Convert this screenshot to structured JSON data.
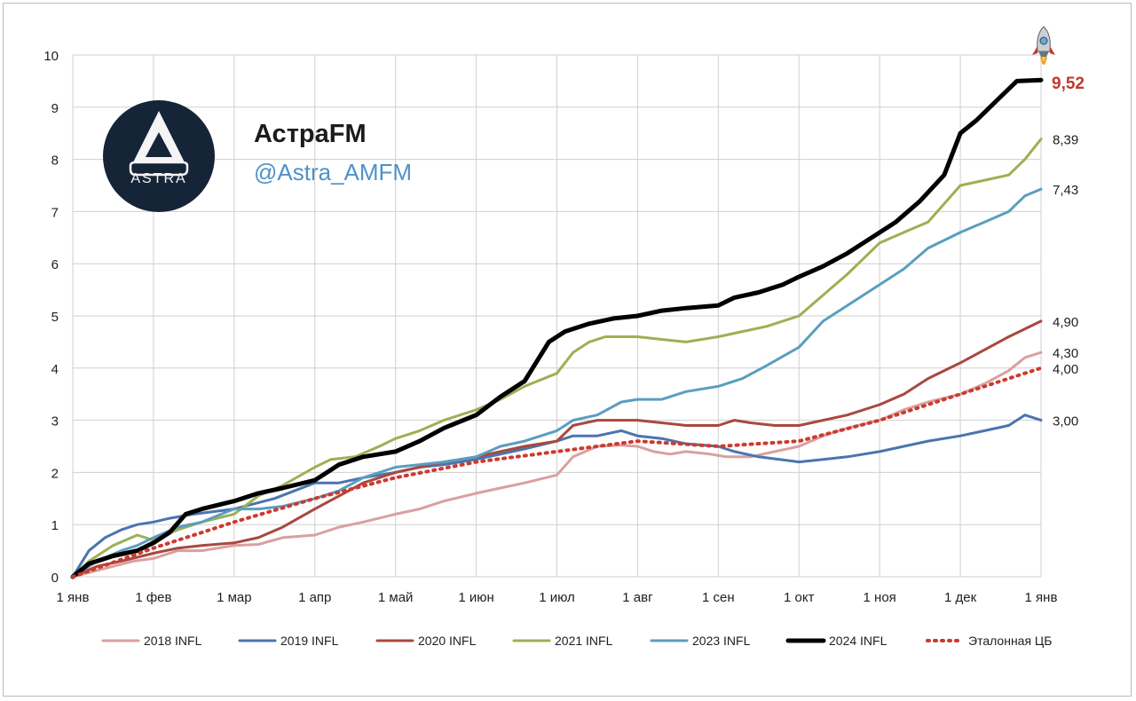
{
  "brand": {
    "name": "АстраFM",
    "handle": "@Astra_AMFM",
    "logo_text": "ASTRA"
  },
  "chart_data": {
    "type": "line",
    "title": "",
    "xlabel": "",
    "ylabel": "",
    "x_domain": [
      0,
      12
    ],
    "ylim": [
      0,
      10
    ],
    "y_ticks": [
      "0",
      "1",
      "2",
      "3",
      "4",
      "5",
      "6",
      "7",
      "8",
      "9",
      "10"
    ],
    "x_ticks": [
      "1 янв",
      "1 фев",
      "1 мар",
      "1 апр",
      "1 май",
      "1 июн",
      "1 июл",
      "1 авг",
      "1 сен",
      "1 окт",
      "1 ноя",
      "1 дек",
      "1 янв"
    ],
    "grid": true,
    "legend_position": "bottom",
    "series": [
      {
        "name": "2018 INFL",
        "color": "#d9a0a0",
        "width": 3,
        "dash": "",
        "end_label": "4,30",
        "end_value": 4.3,
        "points": [
          [
            0,
            0
          ],
          [
            0.5,
            0.2
          ],
          [
            0.75,
            0.3
          ],
          [
            1,
            0.35
          ],
          [
            1.3,
            0.5
          ],
          [
            1.6,
            0.5
          ],
          [
            2,
            0.6
          ],
          [
            2.3,
            0.62
          ],
          [
            2.6,
            0.75
          ],
          [
            3,
            0.8
          ],
          [
            3.3,
            0.95
          ],
          [
            3.6,
            1.05
          ],
          [
            4,
            1.2
          ],
          [
            4.3,
            1.3
          ],
          [
            4.6,
            1.45
          ],
          [
            5,
            1.6
          ],
          [
            5.3,
            1.7
          ],
          [
            5.6,
            1.8
          ],
          [
            6,
            1.95
          ],
          [
            6.2,
            2.3
          ],
          [
            6.5,
            2.5
          ],
          [
            6.8,
            2.52
          ],
          [
            7,
            2.5
          ],
          [
            7.2,
            2.4
          ],
          [
            7.4,
            2.35
          ],
          [
            7.6,
            2.4
          ],
          [
            7.9,
            2.35
          ],
          [
            8.1,
            2.3
          ],
          [
            8.4,
            2.3
          ],
          [
            8.7,
            2.4
          ],
          [
            9,
            2.5
          ],
          [
            9.3,
            2.7
          ],
          [
            9.6,
            2.85
          ],
          [
            10,
            3.0
          ],
          [
            10.3,
            3.2
          ],
          [
            10.6,
            3.35
          ],
          [
            11,
            3.5
          ],
          [
            11.3,
            3.7
          ],
          [
            11.6,
            3.95
          ],
          [
            11.8,
            4.2
          ],
          [
            12,
            4.3
          ]
        ]
      },
      {
        "name": "2019 INFL",
        "color": "#4a74b0",
        "width": 3,
        "dash": "",
        "end_label": "3,00",
        "end_value": 3.0,
        "points": [
          [
            0,
            0
          ],
          [
            0.2,
            0.5
          ],
          [
            0.4,
            0.75
          ],
          [
            0.6,
            0.9
          ],
          [
            0.8,
            1.0
          ],
          [
            1,
            1.05
          ],
          [
            1.2,
            1.12
          ],
          [
            1.5,
            1.2
          ],
          [
            2,
            1.3
          ],
          [
            2.5,
            1.5
          ],
          [
            3,
            1.8
          ],
          [
            3.3,
            1.8
          ],
          [
            3.6,
            1.9
          ],
          [
            4,
            2.0
          ],
          [
            4.3,
            2.1
          ],
          [
            4.6,
            2.15
          ],
          [
            5,
            2.25
          ],
          [
            5.3,
            2.35
          ],
          [
            5.6,
            2.45
          ],
          [
            6,
            2.6
          ],
          [
            6.2,
            2.7
          ],
          [
            6.5,
            2.7
          ],
          [
            6.8,
            2.8
          ],
          [
            7,
            2.7
          ],
          [
            7.3,
            2.65
          ],
          [
            7.6,
            2.55
          ],
          [
            8,
            2.5
          ],
          [
            8.2,
            2.4
          ],
          [
            8.5,
            2.3
          ],
          [
            9,
            2.2
          ],
          [
            9.3,
            2.25
          ],
          [
            9.6,
            2.3
          ],
          [
            10,
            2.4
          ],
          [
            10.3,
            2.5
          ],
          [
            10.6,
            2.6
          ],
          [
            11,
            2.7
          ],
          [
            11.3,
            2.8
          ],
          [
            11.6,
            2.9
          ],
          [
            11.8,
            3.1
          ],
          [
            12,
            3.0
          ]
        ]
      },
      {
        "name": "2020 INFL",
        "color": "#a9483f",
        "width": 3,
        "dash": "",
        "end_label": "4,90",
        "end_value": 4.9,
        "points": [
          [
            0,
            0
          ],
          [
            0.3,
            0.2
          ],
          [
            0.6,
            0.3
          ],
          [
            1,
            0.45
          ],
          [
            1.3,
            0.55
          ],
          [
            1.6,
            0.6
          ],
          [
            2,
            0.65
          ],
          [
            2.3,
            0.75
          ],
          [
            2.6,
            0.95
          ],
          [
            3,
            1.3
          ],
          [
            3.3,
            1.55
          ],
          [
            3.6,
            1.8
          ],
          [
            4,
            2.0
          ],
          [
            4.3,
            2.1
          ],
          [
            4.6,
            2.2
          ],
          [
            5,
            2.3
          ],
          [
            5.3,
            2.4
          ],
          [
            5.6,
            2.5
          ],
          [
            6,
            2.6
          ],
          [
            6.2,
            2.9
          ],
          [
            6.5,
            3.0
          ],
          [
            7,
            3.0
          ],
          [
            7.3,
            2.95
          ],
          [
            7.6,
            2.9
          ],
          [
            8,
            2.9
          ],
          [
            8.2,
            3.0
          ],
          [
            8.4,
            2.95
          ],
          [
            8.7,
            2.9
          ],
          [
            9,
            2.9
          ],
          [
            9.3,
            3.0
          ],
          [
            9.6,
            3.1
          ],
          [
            10,
            3.3
          ],
          [
            10.3,
            3.5
          ],
          [
            10.6,
            3.8
          ],
          [
            11,
            4.1
          ],
          [
            11.3,
            4.35
          ],
          [
            11.6,
            4.6
          ],
          [
            12,
            4.9
          ]
        ]
      },
      {
        "name": "2021 INFL",
        "color": "#9bb153",
        "width": 3,
        "dash": "",
        "end_label": "8,39",
        "end_value": 8.39,
        "points": [
          [
            0,
            0
          ],
          [
            0.2,
            0.3
          ],
          [
            0.5,
            0.6
          ],
          [
            0.8,
            0.8
          ],
          [
            1,
            0.7
          ],
          [
            1.3,
            0.9
          ],
          [
            1.6,
            1.05
          ],
          [
            2,
            1.2
          ],
          [
            2.3,
            1.55
          ],
          [
            2.6,
            1.75
          ],
          [
            3,
            2.1
          ],
          [
            3.2,
            2.25
          ],
          [
            3.5,
            2.3
          ],
          [
            3.8,
            2.5
          ],
          [
            4,
            2.65
          ],
          [
            4.3,
            2.8
          ],
          [
            4.6,
            3.0
          ],
          [
            5,
            3.2
          ],
          [
            5.3,
            3.4
          ],
          [
            5.6,
            3.65
          ],
          [
            6,
            3.9
          ],
          [
            6.2,
            4.3
          ],
          [
            6.4,
            4.5
          ],
          [
            6.6,
            4.6
          ],
          [
            7,
            4.6
          ],
          [
            7.3,
            4.55
          ],
          [
            7.6,
            4.5
          ],
          [
            8,
            4.6
          ],
          [
            8.3,
            4.7
          ],
          [
            8.6,
            4.8
          ],
          [
            9,
            5.0
          ],
          [
            9.3,
            5.4
          ],
          [
            9.6,
            5.8
          ],
          [
            10,
            6.4
          ],
          [
            10.3,
            6.6
          ],
          [
            10.6,
            6.8
          ],
          [
            11,
            7.5
          ],
          [
            11.3,
            7.6
          ],
          [
            11.6,
            7.7
          ],
          [
            11.8,
            8.0
          ],
          [
            12,
            8.39
          ]
        ]
      },
      {
        "name": "2023 INFL",
        "color": "#5a9ebf",
        "width": 3,
        "dash": "",
        "end_label": "7,43",
        "end_value": 7.43,
        "points": [
          [
            0,
            0
          ],
          [
            0.3,
            0.3
          ],
          [
            0.6,
            0.5
          ],
          [
            0.8,
            0.6
          ],
          [
            1,
            0.75
          ],
          [
            1.3,
            0.95
          ],
          [
            1.6,
            1.05
          ],
          [
            2,
            1.3
          ],
          [
            2.3,
            1.3
          ],
          [
            2.6,
            1.35
          ],
          [
            3,
            1.5
          ],
          [
            3.3,
            1.65
          ],
          [
            3.6,
            1.9
          ],
          [
            4,
            2.1
          ],
          [
            4.3,
            2.15
          ],
          [
            4.6,
            2.2
          ],
          [
            5,
            2.3
          ],
          [
            5.3,
            2.5
          ],
          [
            5.6,
            2.6
          ],
          [
            6,
            2.8
          ],
          [
            6.2,
            3.0
          ],
          [
            6.5,
            3.1
          ],
          [
            6.8,
            3.35
          ],
          [
            7,
            3.4
          ],
          [
            7.3,
            3.4
          ],
          [
            7.6,
            3.55
          ],
          [
            8,
            3.65
          ],
          [
            8.3,
            3.8
          ],
          [
            8.6,
            4.05
          ],
          [
            9,
            4.4
          ],
          [
            9.3,
            4.9
          ],
          [
            9.6,
            5.2
          ],
          [
            10,
            5.6
          ],
          [
            10.3,
            5.9
          ],
          [
            10.6,
            6.3
          ],
          [
            11,
            6.6
          ],
          [
            11.3,
            6.8
          ],
          [
            11.6,
            7.0
          ],
          [
            11.8,
            7.3
          ],
          [
            12,
            7.43
          ]
        ]
      },
      {
        "name": "2024 INFL",
        "color": "#000000",
        "width": 5,
        "dash": "",
        "end_label": "9,52",
        "end_value": 9.52,
        "points": [
          [
            0,
            0
          ],
          [
            0.2,
            0.25
          ],
          [
            0.5,
            0.4
          ],
          [
            0.8,
            0.5
          ],
          [
            1,
            0.65
          ],
          [
            1.2,
            0.85
          ],
          [
            1.4,
            1.2
          ],
          [
            1.6,
            1.3
          ],
          [
            2,
            1.45
          ],
          [
            2.3,
            1.6
          ],
          [
            2.6,
            1.7
          ],
          [
            3,
            1.85
          ],
          [
            3.3,
            2.15
          ],
          [
            3.6,
            2.3
          ],
          [
            4,
            2.4
          ],
          [
            4.3,
            2.6
          ],
          [
            4.6,
            2.85
          ],
          [
            5,
            3.1
          ],
          [
            5.3,
            3.45
          ],
          [
            5.6,
            3.75
          ],
          [
            5.9,
            4.5
          ],
          [
            6.1,
            4.7
          ],
          [
            6.4,
            4.85
          ],
          [
            6.7,
            4.95
          ],
          [
            7,
            5.0
          ],
          [
            7.3,
            5.1
          ],
          [
            7.6,
            5.15
          ],
          [
            8,
            5.2
          ],
          [
            8.2,
            5.35
          ],
          [
            8.5,
            5.45
          ],
          [
            8.8,
            5.6
          ],
          [
            9,
            5.75
          ],
          [
            9.3,
            5.95
          ],
          [
            9.6,
            6.2
          ],
          [
            9.9,
            6.5
          ],
          [
            10.2,
            6.8
          ],
          [
            10.5,
            7.2
          ],
          [
            10.8,
            7.7
          ],
          [
            11,
            8.5
          ],
          [
            11.2,
            8.75
          ],
          [
            11.5,
            9.2
          ],
          [
            11.7,
            9.5
          ],
          [
            12,
            9.52
          ]
        ]
      },
      {
        "name": "Эталонная ЦБ",
        "color": "#cd3a2e",
        "width": 4,
        "dash": "2 6",
        "end_label": "4,00",
        "end_value": 4.0,
        "points": [
          [
            0,
            0
          ],
          [
            1,
            0.55
          ],
          [
            2,
            1.05
          ],
          [
            3,
            1.5
          ],
          [
            4,
            1.9
          ],
          [
            5,
            2.2
          ],
          [
            6,
            2.4
          ],
          [
            6.5,
            2.5
          ],
          [
            7,
            2.6
          ],
          [
            8,
            2.5
          ],
          [
            9,
            2.6
          ],
          [
            10,
            3.0
          ],
          [
            11,
            3.5
          ],
          [
            12,
            4.0
          ]
        ]
      }
    ]
  }
}
